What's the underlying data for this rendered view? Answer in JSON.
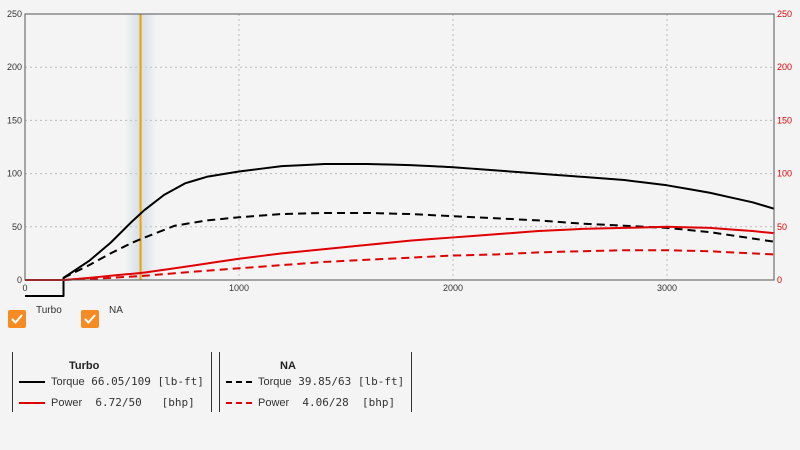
{
  "chart_data": {
    "type": "line",
    "xlim": [
      0,
      3500
    ],
    "ylim_left": [
      0,
      250
    ],
    "ylim_right": [
      0,
      250
    ],
    "x_ticks": [
      0,
      1000,
      2000,
      3000
    ],
    "y_ticks": [
      0,
      50,
      100,
      150,
      200,
      250
    ],
    "grid": true,
    "cursor_x": 540,
    "series": [
      {
        "name": "Torque",
        "group": "Turbo",
        "axis": "left",
        "color": "#000000",
        "dash": false,
        "points": [
          [
            0,
            -15
          ],
          [
            180,
            -15
          ],
          [
            180,
            2
          ],
          [
            300,
            18
          ],
          [
            400,
            35
          ],
          [
            500,
            55
          ],
          [
            560,
            66
          ],
          [
            650,
            80
          ],
          [
            750,
            91
          ],
          [
            850,
            97
          ],
          [
            1000,
            102
          ],
          [
            1200,
            107
          ],
          [
            1400,
            109
          ],
          [
            1600,
            109
          ],
          [
            1800,
            108
          ],
          [
            2000,
            106
          ],
          [
            2200,
            103
          ],
          [
            2400,
            100
          ],
          [
            2600,
            97
          ],
          [
            2800,
            94
          ],
          [
            3000,
            89
          ],
          [
            3200,
            82
          ],
          [
            3400,
            73
          ],
          [
            3500,
            67
          ]
        ]
      },
      {
        "name": "Torque",
        "group": "NA",
        "axis": "left",
        "color": "#000000",
        "dash": true,
        "points": [
          [
            180,
            2
          ],
          [
            300,
            14
          ],
          [
            400,
            25
          ],
          [
            500,
            35
          ],
          [
            560,
            40
          ],
          [
            700,
            51
          ],
          [
            850,
            56
          ],
          [
            1000,
            59
          ],
          [
            1200,
            62
          ],
          [
            1400,
            63
          ],
          [
            1600,
            63
          ],
          [
            1800,
            62
          ],
          [
            2000,
            60
          ],
          [
            2200,
            58
          ],
          [
            2400,
            56
          ],
          [
            2600,
            53
          ],
          [
            2800,
            51
          ],
          [
            3000,
            49
          ],
          [
            3200,
            45
          ],
          [
            3400,
            39
          ],
          [
            3500,
            36
          ]
        ]
      },
      {
        "name": "Power",
        "group": "Turbo",
        "axis": "right",
        "color": "#e00000",
        "dash": false,
        "points": [
          [
            0,
            0
          ],
          [
            180,
            0
          ],
          [
            300,
            2
          ],
          [
            400,
            4
          ],
          [
            560,
            7
          ],
          [
            800,
            14
          ],
          [
            1000,
            20
          ],
          [
            1200,
            25
          ],
          [
            1400,
            29
          ],
          [
            1600,
            33
          ],
          [
            1800,
            37
          ],
          [
            2000,
            40
          ],
          [
            2200,
            43
          ],
          [
            2400,
            46
          ],
          [
            2600,
            48
          ],
          [
            2800,
            49
          ],
          [
            3000,
            50
          ],
          [
            3200,
            49
          ],
          [
            3400,
            46
          ],
          [
            3500,
            44
          ]
        ]
      },
      {
        "name": "Power",
        "group": "NA",
        "axis": "right",
        "color": "#e00000",
        "dash": true,
        "points": [
          [
            0,
            0
          ],
          [
            180,
            0
          ],
          [
            300,
            1
          ],
          [
            400,
            2
          ],
          [
            560,
            4
          ],
          [
            800,
            8
          ],
          [
            1000,
            11
          ],
          [
            1200,
            14
          ],
          [
            1400,
            17
          ],
          [
            1600,
            19
          ],
          [
            1800,
            21
          ],
          [
            2000,
            23
          ],
          [
            2200,
            24
          ],
          [
            2400,
            26
          ],
          [
            2600,
            27
          ],
          [
            2800,
            28
          ],
          [
            3000,
            28
          ],
          [
            3200,
            27
          ],
          [
            3400,
            25
          ],
          [
            3500,
            24
          ]
        ]
      }
    ]
  },
  "checkboxes": [
    {
      "label": "Turbo",
      "checked": true
    },
    {
      "label": "NA",
      "checked": true
    }
  ],
  "legend": {
    "turbo": {
      "title": "Turbo",
      "torque_label": "Torque",
      "torque_value": "66.05/109 [lb-ft]",
      "power_label": "Power",
      "power_value": " 6.72/50   [bhp]"
    },
    "na": {
      "title": "NA",
      "torque_label": "Torque",
      "torque_value": "39.85/63 [lb-ft]",
      "power_label": "Power",
      "power_value": " 4.06/28  [bhp]"
    }
  }
}
